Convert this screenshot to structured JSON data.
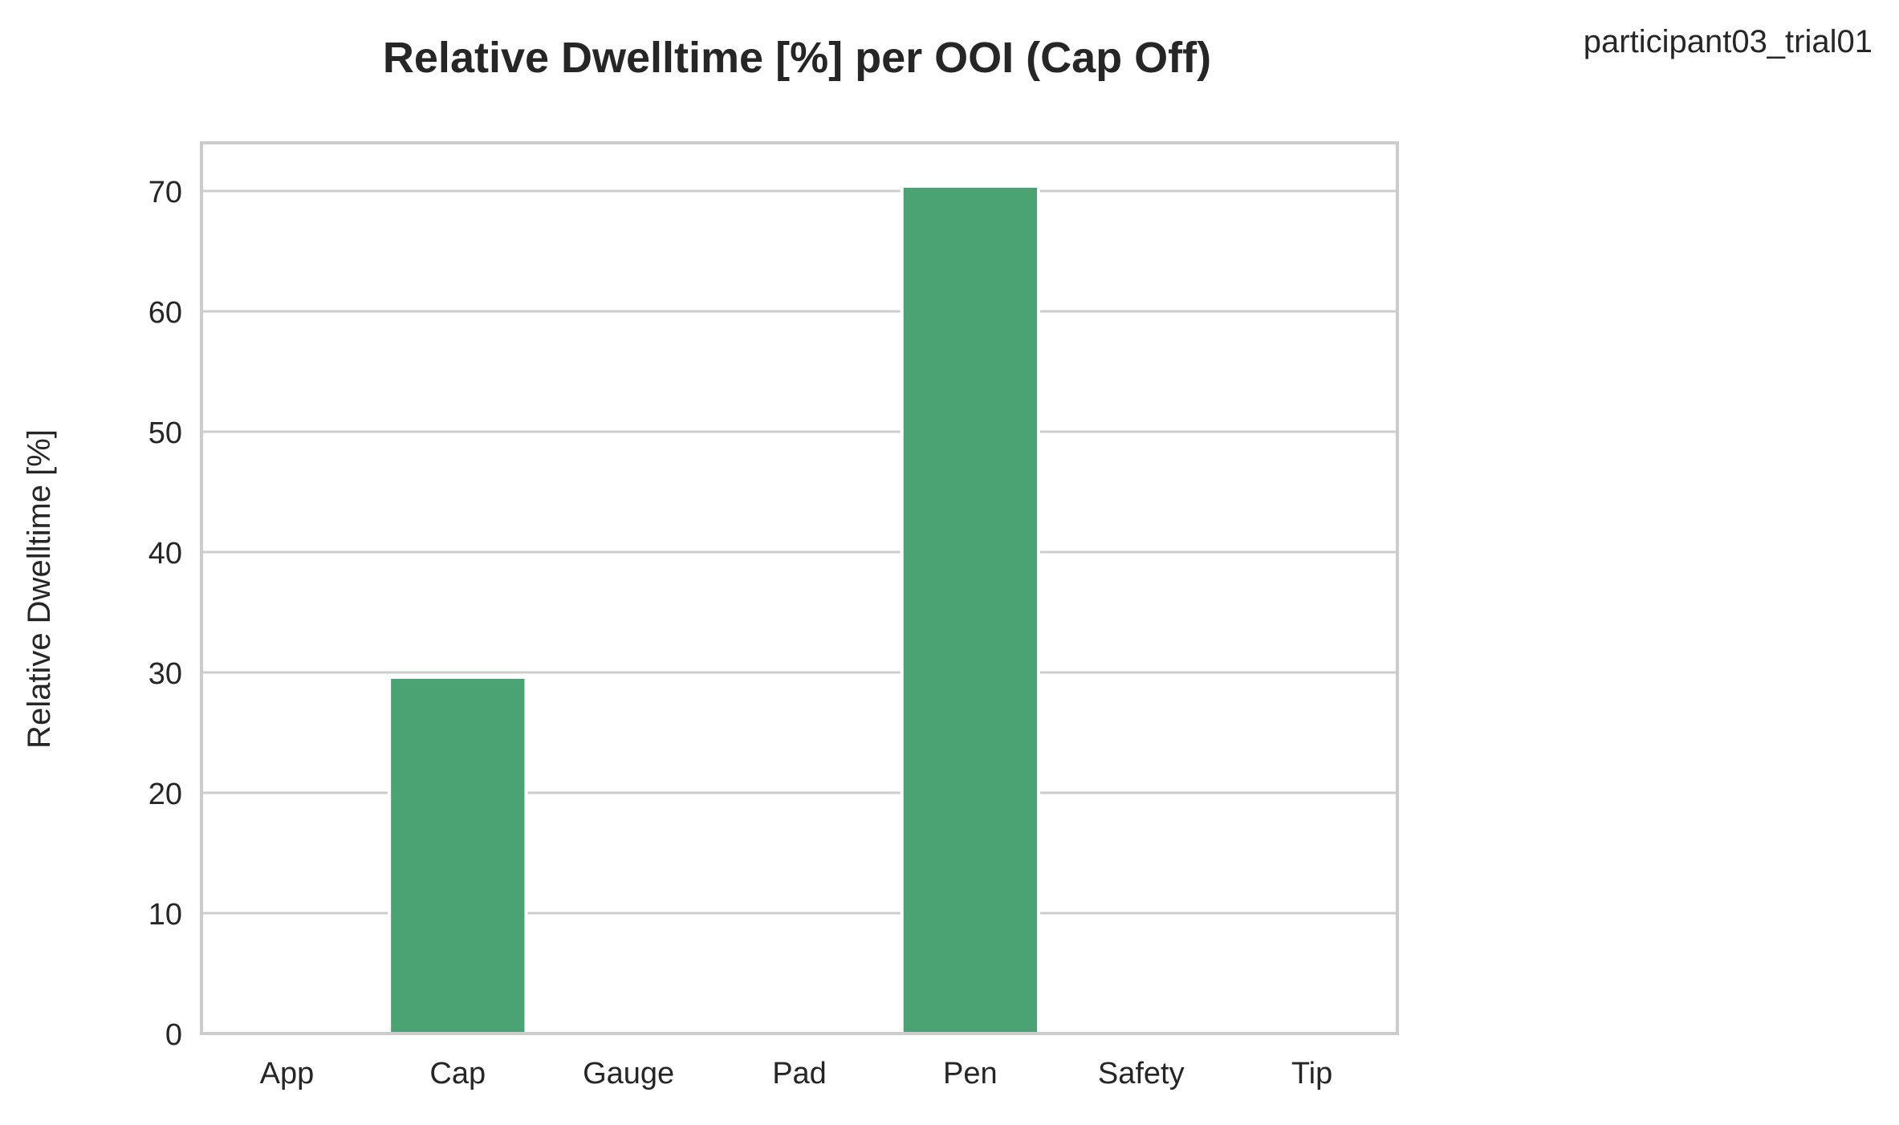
{
  "chart_data": {
    "type": "bar",
    "title": "Relative Dwelltime [%] per OOI (Cap Off)",
    "subtitle": "participant03_trial01",
    "xlabel": "",
    "ylabel": "Relative Dwelltime [%]",
    "categories": [
      "App",
      "Cap",
      "Gauge",
      "Pad",
      "Pen",
      "Safety",
      "Tip"
    ],
    "values": [
      0,
      29.6,
      0,
      0,
      70.4,
      0,
      0
    ],
    "ylim": [
      0,
      74
    ],
    "yticks": [
      0,
      10,
      20,
      30,
      40,
      50,
      60,
      70
    ],
    "grid": "horizontal",
    "legend": "none",
    "colors": {
      "bar": "#4ba373",
      "grid": "#cccccc",
      "frame": "#cccccc",
      "text": "#262626",
      "background": "#ffffff"
    }
  }
}
